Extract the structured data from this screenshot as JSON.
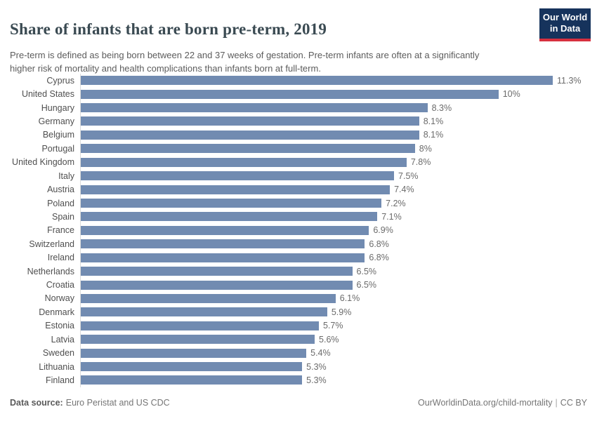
{
  "header": {
    "title": "Share of infants that are born pre-term, 2019",
    "subtitle": "Pre-term is defined as being born between 22 and 37 weeks of gestation. Pre-term infants are often at a significantly higher risk of mortality and health complications than infants born at full-term.",
    "logo": {
      "line1": "Our World",
      "line2": "in Data"
    }
  },
  "chart_data": {
    "type": "bar",
    "orientation": "horizontal",
    "title": "Share of infants that are born pre-term, 2019",
    "categories": [
      "Cyprus",
      "United States",
      "Hungary",
      "Germany",
      "Belgium",
      "Portugal",
      "United Kingdom",
      "Italy",
      "Austria",
      "Poland",
      "Spain",
      "France",
      "Switzerland",
      "Ireland",
      "Netherlands",
      "Croatia",
      "Norway",
      "Denmark",
      "Estonia",
      "Latvia",
      "Sweden",
      "Lithuania",
      "Finland"
    ],
    "values": [
      11.3,
      10,
      8.3,
      8.1,
      8.1,
      8,
      7.8,
      7.5,
      7.4,
      7.2,
      7.1,
      6.9,
      6.8,
      6.8,
      6.5,
      6.5,
      6.1,
      5.9,
      5.7,
      5.6,
      5.4,
      5.3,
      5.3
    ],
    "value_labels": [
      "11.3%",
      "10%",
      "8.3%",
      "8.1%",
      "8.1%",
      "8%",
      "7.8%",
      "7.5%",
      "7.4%",
      "7.2%",
      "7.1%",
      "6.9%",
      "6.8%",
      "6.8%",
      "6.5%",
      "6.5%",
      "6.1%",
      "5.9%",
      "5.7%",
      "5.6%",
      "5.4%",
      "5.3%",
      "5.3%"
    ],
    "xlim": [
      0,
      11.3
    ],
    "unit": "%",
    "grid": false,
    "legend": false,
    "bar_color": "#718bb1",
    "axis_line_color": "#dcdcdc"
  },
  "footer": {
    "datasource_label": "Data source:",
    "datasource_value": "Euro Peristat and US CDC",
    "link": "OurWorldinData.org/child-mortality",
    "separator": "|",
    "license": "CC BY"
  }
}
